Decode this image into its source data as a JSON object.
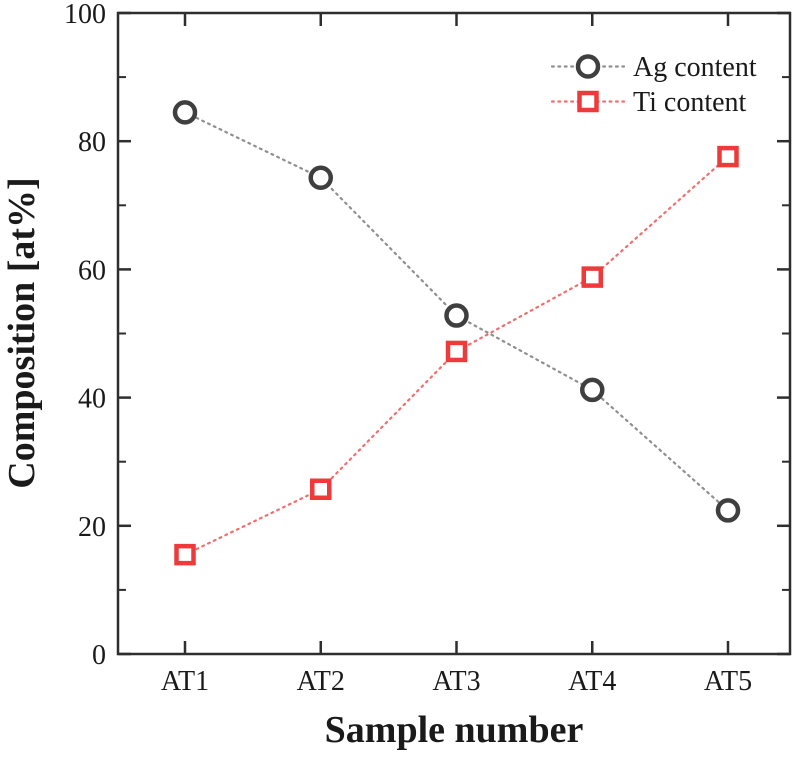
{
  "figure": {
    "background": "#ffffff"
  },
  "chart_data": {
    "type": "line",
    "title": "",
    "xlabel": "Sample number",
    "ylabel": "Composition [at%]",
    "categories": [
      "AT1",
      "AT2",
      "AT3",
      "AT4",
      "AT5"
    ],
    "series": [
      {
        "name": "Ag content",
        "values": [
          84.5,
          74.3,
          52.8,
          41.2,
          22.4
        ],
        "marker": "circle",
        "marker_color": "#3f3f3f",
        "line_color": "#8f8f8f"
      },
      {
        "name": "Ti content",
        "values": [
          15.5,
          25.7,
          47.2,
          58.8,
          77.6
        ],
        "marker": "square",
        "marker_color": "#ee3a3a",
        "line_color": "#f26e6e"
      }
    ],
    "ylim": [
      0,
      100
    ],
    "y_ticks_major": [
      0,
      20,
      40,
      60,
      80,
      100
    ],
    "y_ticks_minor": [
      10,
      30,
      50,
      70,
      90
    ],
    "grid": false,
    "line_style": "dotted",
    "legend_position": "top-right",
    "axis_color": "#2e2e2e",
    "text_color": "#1a1a1a",
    "marker_fill": "#ffffff"
  }
}
